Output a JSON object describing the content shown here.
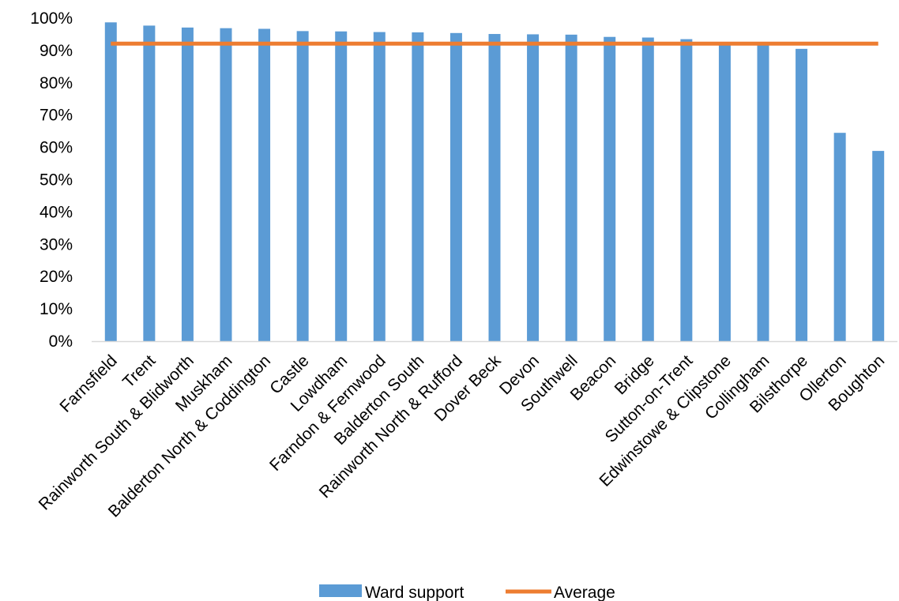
{
  "chart_data": {
    "type": "bar",
    "categories": [
      "Farnsfield",
      "Trent",
      "Rainworth South & Blidworth",
      "Muskham",
      "Balderton North & Coddington",
      "Castle",
      "Lowdham",
      "Farndon & Fernwood",
      "Balderton South",
      "Rainworth North & Rufford",
      "Dover Beck",
      "Devon",
      "Southwell",
      "Beacon",
      "Bridge",
      "Sutton-on-Trent",
      "Edwinstowe & Clipstone",
      "Collingham",
      "Bilsthorpe",
      "Ollerton",
      "Boughton"
    ],
    "series": [
      {
        "name": "Ward support",
        "type": "bar",
        "color": "#5B9BD5",
        "values": [
          98.7,
          97.7,
          97.1,
          96.9,
          96.7,
          96.0,
          95.9,
          95.7,
          95.6,
          95.4,
          95.1,
          95.0,
          94.9,
          94.2,
          94.0,
          93.5,
          92.4,
          92.0,
          90.5,
          64.5,
          58.9
        ]
      },
      {
        "name": "Average",
        "type": "line",
        "color": "#ED7D31",
        "values": [
          92.1,
          92.1,
          92.1,
          92.1,
          92.1,
          92.1,
          92.1,
          92.1,
          92.1,
          92.1,
          92.1,
          92.1,
          92.1,
          92.1,
          92.1,
          92.1,
          92.1,
          92.1,
          92.1,
          92.1,
          92.1
        ]
      }
    ],
    "ylim": [
      0,
      100
    ],
    "yticks": [
      "0%",
      "10%",
      "20%",
      "30%",
      "40%",
      "50%",
      "60%",
      "70%",
      "80%",
      "90%",
      "100%"
    ],
    "grid": false,
    "legend": "bottom",
    "title": "",
    "xlabel": "",
    "ylabel": ""
  }
}
